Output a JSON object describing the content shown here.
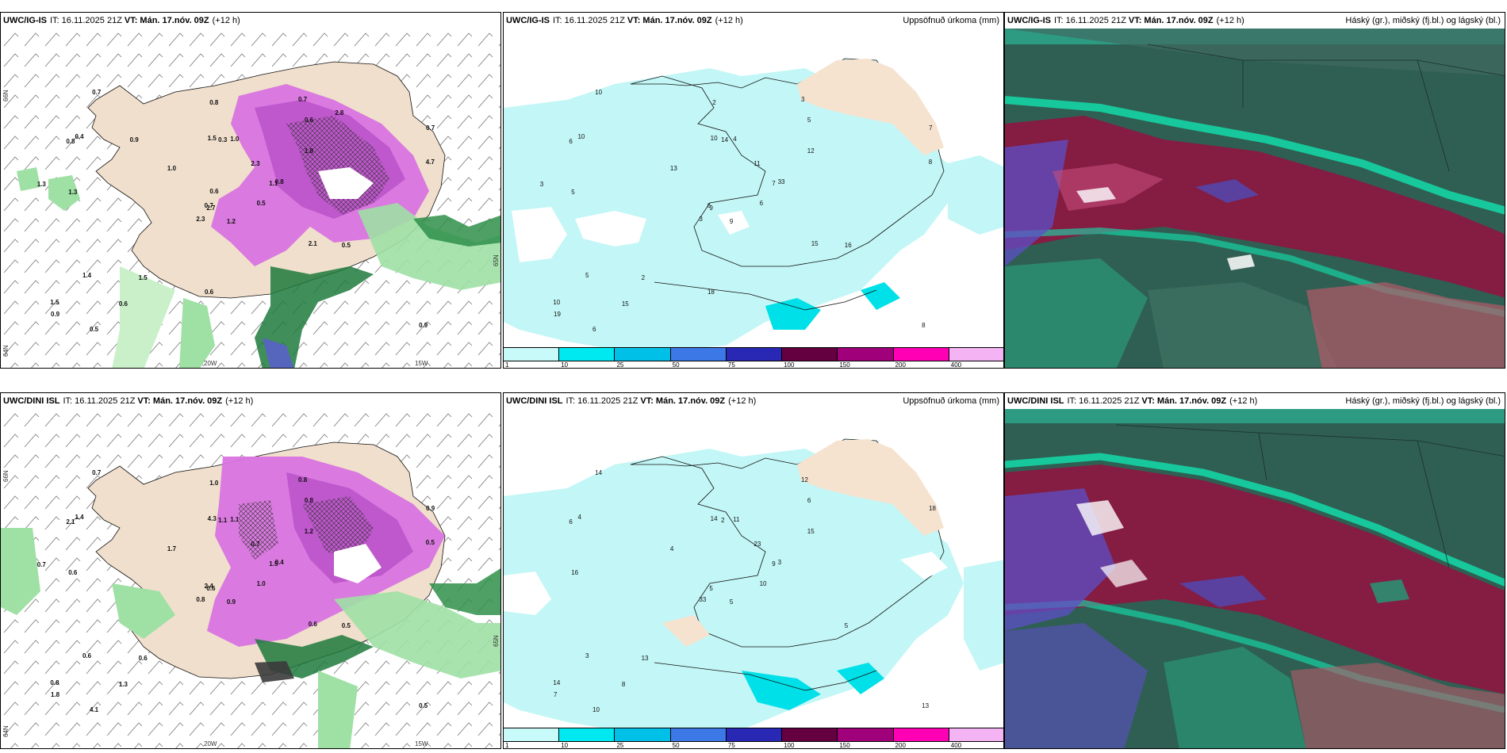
{
  "rows": [
    {
      "model": "UWC/IG-IS",
      "it": "IT: 16.11.2025 21Z",
      "vt_label": "VT:",
      "vt": "Mán. 17.nóv. 09Z",
      "lead": "(+12 h)"
    },
    {
      "model": "UWC/DINI ISL",
      "it": "IT: 16.11.2025 21Z",
      "vt_label": "VT:",
      "vt": "Mán. 17.nóv. 09Z",
      "lead": "(+12 h)"
    }
  ],
  "precip_title": "Uppsöfnuð úrkoma (mm)",
  "cloud_title": "Háský (gr.), miðský (fj.bl.) og lágský (bl.)",
  "colorbar": {
    "labels": [
      "1",
      "10",
      "25",
      "50",
      "75",
      "100",
      "150",
      "200",
      "400"
    ],
    "colors": [
      "#c8fafa",
      "#00e8f0",
      "#00c0e8",
      "#3c78e6",
      "#2828b4",
      "#640040",
      "#a0007a",
      "#ff00b4",
      "#f4b4f4"
    ]
  },
  "axis_labels": {
    "lon_20w": "20W",
    "lon_15w": "15W",
    "lat_66n": "66N",
    "lat_64n": "64N",
    "lat_65n": "65N"
  },
  "map_values": {
    "row1_left": [
      "1.2",
      "0.8",
      "2.7",
      "1.5",
      "1.1",
      "1.5",
      "0.7",
      "1.0",
      "0.6",
      "0.5",
      "0.7",
      "0.9",
      "1.3",
      "0.7",
      "2.3",
      "1.8",
      "0.5",
      "1.5",
      "2.3",
      "1.4",
      "1.0",
      "0.9",
      "0.6",
      "0.3",
      "0.8",
      "0.5",
      "0.4",
      "0.8",
      "1.3",
      "2.1",
      "4.7",
      "0.7",
      "0.6",
      "0.6",
      "0.9",
      "2.8"
    ],
    "row1_mid": [
      "9",
      "6",
      "9",
      "10",
      "7",
      "2",
      "3",
      "4",
      "5",
      "6",
      "10",
      "8",
      "5",
      "7",
      "3",
      "12",
      "6",
      "10",
      "11",
      "5",
      "13",
      "19",
      "15",
      "14",
      "33",
      "16",
      "10",
      "2",
      "3",
      "15",
      "8",
      "6",
      "18"
    ],
    "row2_left": [
      "0.9",
      "2.1",
      "0.6",
      "0.8",
      "1.5",
      "0.6",
      "0.8",
      "1.1",
      "0.8",
      "1.0",
      "0.7",
      "0.5",
      "0.6",
      "0.9",
      "0.8",
      "1.2",
      "4.1",
      "4.3",
      "0.7",
      "0.6",
      "1.7",
      "1.8",
      "1.3",
      "1.1",
      "0.4",
      "0.5",
      "1.4",
      "1.0",
      "0.7",
      "0.6",
      "0.5",
      "2.4"
    ],
    "row2_mid": [
      "5",
      "6",
      "5",
      "14",
      "9",
      "13",
      "12",
      "11",
      "6",
      "10",
      "14",
      "13",
      "16",
      "18",
      "33",
      "15",
      "10",
      "14",
      "23",
      "3",
      "4",
      "7",
      "8",
      "2",
      "3",
      "5",
      "4"
    ]
  }
}
